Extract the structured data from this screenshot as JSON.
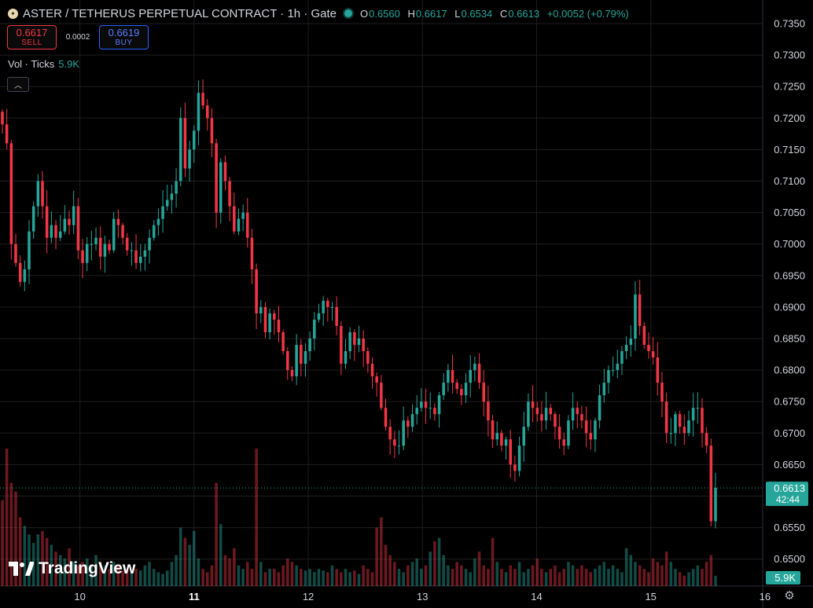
{
  "header": {
    "title": "ASTER / TETHERUS PERPETUAL CONTRACT · 1h · Gate",
    "ohlc": {
      "o_label": "O",
      "o": "0.6560",
      "h_label": "H",
      "h": "0.6617",
      "l_label": "L",
      "l": "0.6534",
      "c_label": "C",
      "c": "0.6613",
      "change": "+0.0052 (+0.79%)"
    }
  },
  "trade": {
    "sell_price": "0.6617",
    "sell_label": "SELL",
    "spread": "0.0002",
    "buy_price": "0.6619",
    "buy_label": "BUY"
  },
  "volume_legend": {
    "label": "Vol · Ticks",
    "value": "5.9K"
  },
  "logo": {
    "text": "TradingView"
  },
  "colors": {
    "up": "#26a69a",
    "down": "#f23645",
    "background": "#000000",
    "grid": "#1e1e1e",
    "text": "#d1d4dc"
  },
  "chart_data": {
    "type": "candlestick",
    "interval": "1h",
    "price_ticks": [
      "0.7350",
      "0.7300",
      "0.7250",
      "0.7200",
      "0.7150",
      "0.7100",
      "0.7050",
      "0.7000",
      "0.6950",
      "0.6900",
      "0.6850",
      "0.6800",
      "0.6750",
      "0.6700",
      "0.6650",
      "0.6600",
      "0.6550",
      "0.6500"
    ],
    "ylim": [
      0.6465,
      0.737
    ],
    "x_ticks": [
      "10",
      "11",
      "12",
      "13",
      "14",
      "15",
      "16"
    ],
    "x_ticks_bold": [
      "11"
    ],
    "xlim_days": [
      9.3,
      15.98
    ],
    "last_price": "0.6613",
    "countdown": "42:44",
    "last_volume": "5.9K",
    "closes": [
      0.719,
      0.716,
      0.7,
      0.697,
      0.694,
      0.696,
      0.702,
      0.706,
      0.71,
      0.706,
      0.701,
      0.703,
      0.701,
      0.702,
      0.704,
      0.703,
      0.706,
      0.699,
      0.697,
      0.7,
      0.7,
      0.701,
      0.698,
      0.7,
      0.699,
      0.704,
      0.703,
      0.701,
      0.699,
      0.699,
      0.697,
      0.698,
      0.699,
      0.701,
      0.703,
      0.704,
      0.706,
      0.707,
      0.708,
      0.71,
      0.72,
      0.712,
      0.715,
      0.718,
      0.724,
      0.722,
      0.72,
      0.716,
      0.705,
      0.713,
      0.71,
      0.706,
      0.702,
      0.704,
      0.705,
      0.701,
      0.696,
      0.689,
      0.69,
      0.686,
      0.689,
      0.688,
      0.686,
      0.683,
      0.68,
      0.679,
      0.684,
      0.681,
      0.683,
      0.685,
      0.688,
      0.689,
      0.691,
      0.69,
      0.69,
      0.687,
      0.681,
      0.683,
      0.686,
      0.684,
      0.685,
      0.683,
      0.681,
      0.679,
      0.678,
      0.674,
      0.671,
      0.669,
      0.668,
      0.668,
      0.672,
      0.671,
      0.673,
      0.674,
      0.675,
      0.674,
      0.674,
      0.673,
      0.676,
      0.678,
      0.68,
      0.678,
      0.677,
      0.676,
      0.678,
      0.68,
      0.681,
      0.678,
      0.675,
      0.672,
      0.669,
      0.67,
      0.668,
      0.669,
      0.665,
      0.664,
      0.668,
      0.671,
      0.675,
      0.674,
      0.673,
      0.672,
      0.674,
      0.673,
      0.671,
      0.669,
      0.668,
      0.672,
      0.674,
      0.673,
      0.672,
      0.67,
      0.669,
      0.672,
      0.676,
      0.678,
      0.68,
      0.68,
      0.681,
      0.683,
      0.684,
      0.685,
      0.692,
      0.687,
      0.684,
      0.683,
      0.682,
      0.678,
      0.675,
      0.67,
      0.67,
      0.673,
      0.671,
      0.67,
      0.672,
      0.674,
      0.674,
      0.67,
      0.668,
      0.656,
      0.6613
    ],
    "volumes_k": [
      50,
      80,
      60,
      55,
      40,
      35,
      30,
      25,
      30,
      32,
      28,
      24,
      20,
      18,
      16,
      22,
      14,
      12,
      14,
      16,
      12,
      18,
      14,
      12,
      10,
      14,
      12,
      9,
      10,
      8,
      10,
      9,
      12,
      14,
      10,
      8,
      7,
      9,
      14,
      18,
      34,
      28,
      24,
      32,
      16,
      10,
      8,
      12,
      60,
      36,
      18,
      16,
      22,
      12,
      10,
      14,
      10,
      80,
      14,
      8,
      10,
      10,
      8,
      12,
      16,
      14,
      12,
      10,
      9,
      10,
      8,
      10,
      9,
      8,
      12,
      10,
      8,
      10,
      8,
      9,
      7,
      12,
      10,
      8,
      34,
      40,
      24,
      18,
      14,
      10,
      8,
      12,
      14,
      16,
      10,
      12,
      20,
      26,
      28,
      18,
      12,
      10,
      14,
      12,
      10,
      8,
      16,
      20,
      12,
      10,
      28,
      14,
      10,
      8,
      12,
      10,
      14,
      8,
      10,
      12,
      16,
      10,
      8,
      10,
      12,
      8,
      10,
      14,
      12,
      10,
      12,
      10,
      8,
      10,
      12,
      14,
      10,
      12,
      10,
      8,
      22,
      18,
      14,
      12,
      10,
      8,
      16,
      14,
      12,
      20,
      14,
      10,
      8,
      6,
      8,
      10,
      12,
      10,
      14,
      18,
      5.9
    ]
  }
}
